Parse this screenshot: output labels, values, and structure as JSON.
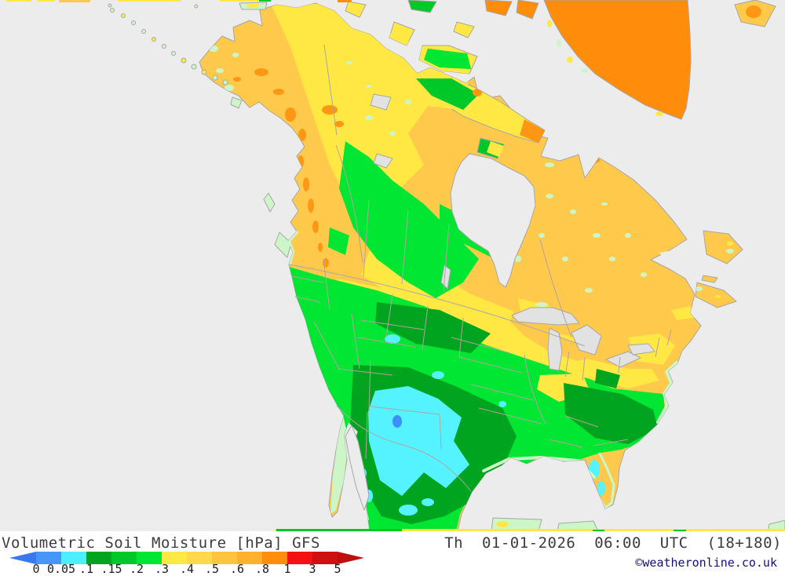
{
  "title": {
    "text": "Volumetric Soil Moisture [hPa] GFS"
  },
  "timestamp": {
    "text": "Th  01-01-2026  06:00  UTC  (18+180)"
  },
  "copyright": {
    "text": "©weatheronline.co.uk"
  },
  "colorbar": {
    "labels": [
      "0",
      "0.05",
      ".1",
      ".15",
      ".2",
      ".3",
      ".4",
      ".5",
      ".6",
      ".8",
      "1",
      "3",
      "5"
    ],
    "segment_colors": [
      "#4596f8",
      "#4deeff",
      "#00a41e",
      "#00c828",
      "#00e632",
      "#fce943",
      "#ffd84e",
      "#ffc342",
      "#ffb02c",
      "#ff8e0d",
      "#f31111",
      "#cd1111"
    ],
    "left_tip_color": "#3b78ef",
    "right_tip_color": "#bd0f0f"
  },
  "map": {
    "palette": {
      "ocean": "#ececec",
      "lake": "#e2e2e2",
      "coast": "#a6a6a6",
      "border_state": "#b5a2a2",
      "border_country": "#a8a8a8",
      "pale_green": "#cdf6c8",
      "yellow": "#ffe843",
      "orange_yellow": "#ffc94b",
      "orange": "#ff9614",
      "greenland_orange": "#ff8c0a",
      "green_bright": "#00e632",
      "green_mid": "#00c828",
      "green_dark": "#00a41e",
      "cyan": "#55f2ff",
      "blue": "#3d8eff"
    }
  }
}
